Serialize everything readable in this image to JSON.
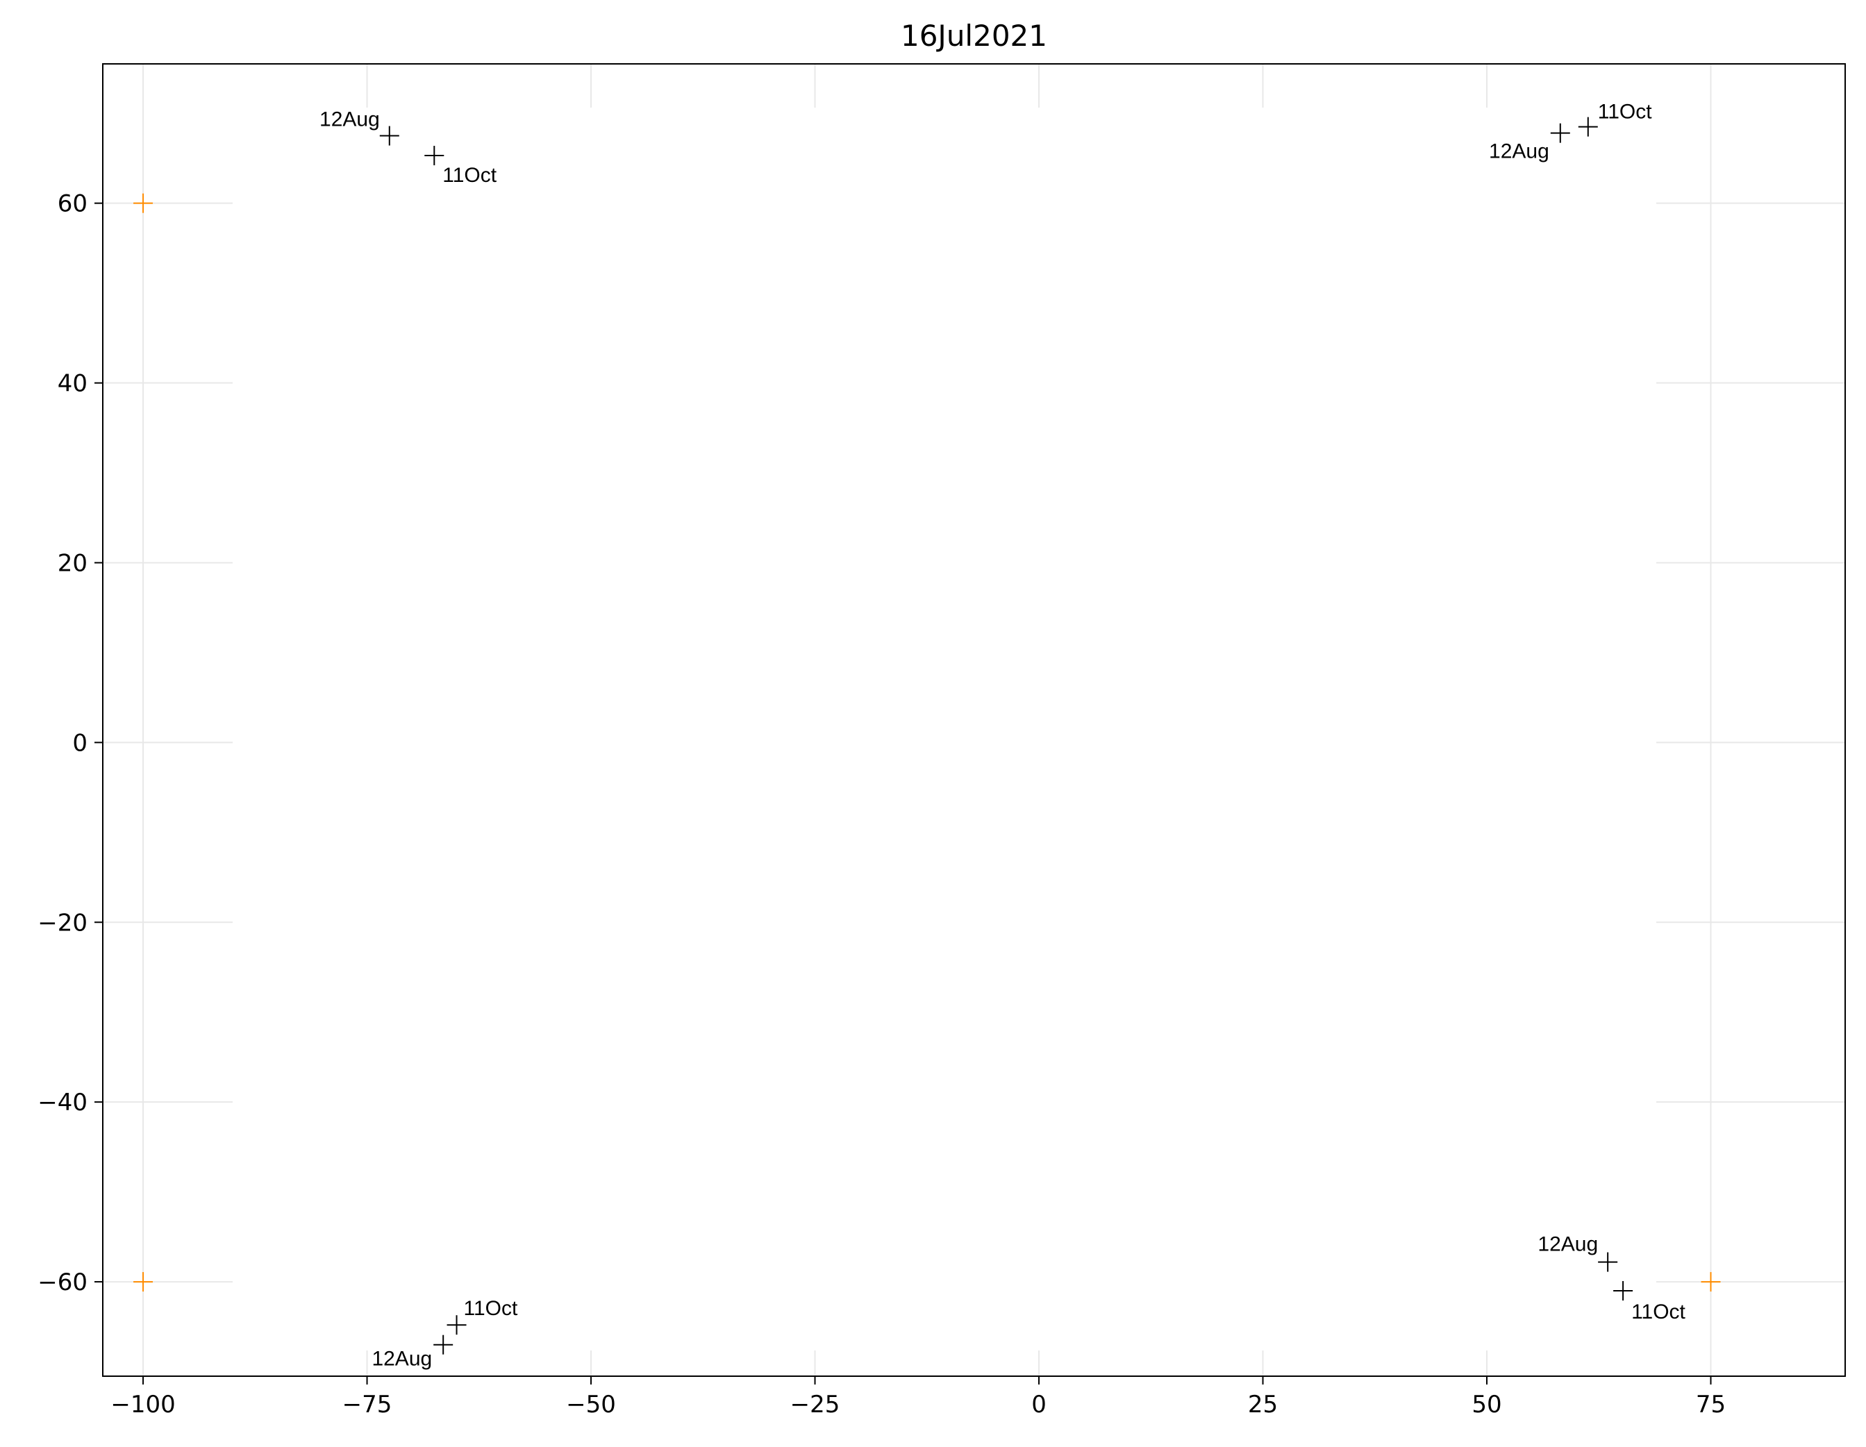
{
  "chart_data": {
    "type": "scatter",
    "title": "16Jul2021",
    "xlabel": "",
    "ylabel": "",
    "xlim": [
      -104.5,
      90.0
    ],
    "ylim": [
      -70.5,
      75.5
    ],
    "xticks": [
      -100,
      -75,
      -50,
      -25,
      0,
      25,
      50,
      75
    ],
    "xtick_labels": [
      "−100",
      "−75",
      "−50",
      "−25",
      "0",
      "25",
      "50",
      "75"
    ],
    "yticks": [
      -60,
      -40,
      -20,
      0,
      20,
      40,
      60
    ],
    "ytick_labels": [
      "−60",
      "−40",
      "−20",
      "0",
      "20",
      "40",
      "60"
    ],
    "grid": true,
    "marker": "+",
    "colors": {
      "tracked": "#000000",
      "reference": "#ff8c00",
      "grid": "#e8e8e8"
    },
    "reference_points": [
      {
        "x": -100,
        "y": 60
      },
      {
        "x": -100,
        "y": -60
      },
      {
        "x": 75,
        "y": -60
      }
    ],
    "tracked_points": [
      {
        "x": -72.5,
        "y": 67.5,
        "label": "12Aug",
        "anchor": "end",
        "dx": -14,
        "dy": -14
      },
      {
        "x": -67.5,
        "y": 65.3,
        "label": "11Oct",
        "anchor": "start",
        "dx": 12,
        "dy": 38
      },
      {
        "x": 58.2,
        "y": 67.8,
        "label": "12Aug",
        "anchor": "end",
        "dx": -16,
        "dy": 36
      },
      {
        "x": 61.3,
        "y": 68.5,
        "label": "11Oct",
        "anchor": "start",
        "dx": 14,
        "dy": -12
      },
      {
        "x": -66.5,
        "y": -67.0,
        "label": "12Aug",
        "anchor": "end",
        "dx": -16,
        "dy": 30
      },
      {
        "x": -65.0,
        "y": -64.8,
        "label": "11Oct",
        "anchor": "start",
        "dx": 10,
        "dy": -14
      },
      {
        "x": 63.5,
        "y": -57.8,
        "label": "12Aug",
        "anchor": "end",
        "dx": -14,
        "dy": -16
      },
      {
        "x": 65.2,
        "y": -61.0,
        "label": "11Oct",
        "anchor": "start",
        "dx": 12,
        "dy": 40
      }
    ]
  }
}
